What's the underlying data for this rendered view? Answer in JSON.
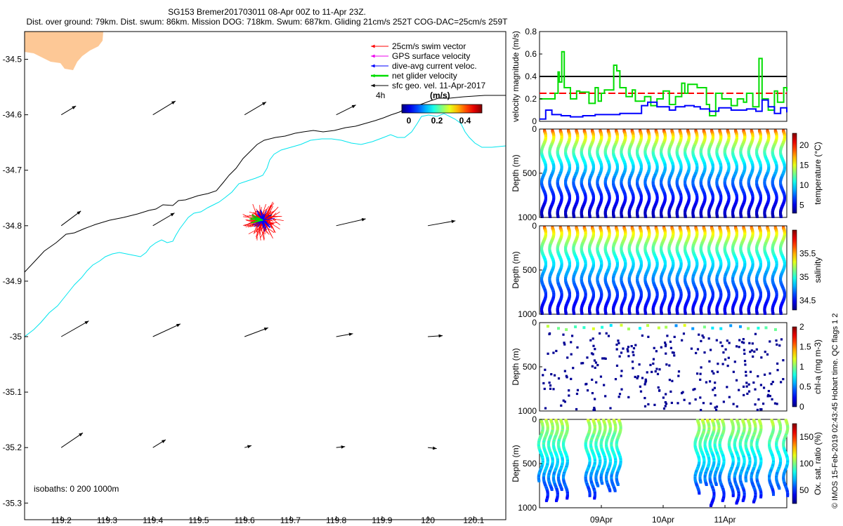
{
  "header": {
    "title": "SG153 Bremer201703011 08-Apr 00Z to 11-Apr 23Z.",
    "subtitle": "Dist. over ground: 79km. Dist. swum: 86km. Mission DOG: 718km. Swum: 687km. Gliding 21cm/s 252T COG-DAC=25cm/s 259T"
  },
  "colors": {
    "land": "#fdc896",
    "coast_200": "#000000",
    "coast_1000": "#00e5ee",
    "swim": "#ff0000",
    "gps": "#ee00ee",
    "dac": "#0000ff",
    "net": "#00dd00",
    "geo": "#000000"
  },
  "chart_data": [
    {
      "type": "scatter",
      "name": "map",
      "xlim": [
        119.12,
        120.17
      ],
      "ylim": [
        -35.33,
        -34.45
      ],
      "xticks": [
        "119.2",
        "119.3",
        "119.4",
        "119.5",
        "119.6",
        "119.7",
        "119.8",
        "119.9",
        "120",
        "120.1"
      ],
      "yticks": [
        "-34.5",
        "-34.6",
        "-34.7",
        "-34.8",
        "-34.9",
        "-35",
        "-35.1",
        "-35.2",
        "-35.3"
      ],
      "legend": [
        {
          "label": "25cm/s swim vector",
          "color": "#ff0000"
        },
        {
          "label": "GPS surface velocity",
          "color": "#ee00ee"
        },
        {
          "label": "dive-avg current veloc.",
          "color": "#0000ff"
        },
        {
          "label": "net glider velocity",
          "color": "#00dd00"
        },
        {
          "label": "sfc geo. vel. 11-Apr-2017",
          "color": "#000000"
        }
      ],
      "time_step_label": "4h",
      "colorbar": {
        "title": "(m/s)",
        "ticks": [
          "0",
          "0.2",
          "0.4"
        ]
      },
      "isobaths_label": "isobaths: 0   200  1000m",
      "glider_position": [
        119.64,
        -34.79
      ],
      "geo_vectors": [
        {
          "lon": 119.2,
          "lat": -34.6,
          "u": 0.15,
          "v": 0.09
        },
        {
          "lon": 119.4,
          "lat": -34.6,
          "u": 0.23,
          "v": 0.14
        },
        {
          "lon": 119.6,
          "lat": -34.6,
          "u": 0.22,
          "v": 0.13
        },
        {
          "lon": 119.8,
          "lat": -34.6,
          "u": 0.2,
          "v": 0.1
        },
        {
          "lon": 119.2,
          "lat": -34.8,
          "u": 0.2,
          "v": 0.15
        },
        {
          "lon": 119.4,
          "lat": -34.8,
          "u": 0.22,
          "v": 0.13
        },
        {
          "lon": 119.6,
          "lat": -34.8,
          "u": 0.28,
          "v": 0.11
        },
        {
          "lon": 119.8,
          "lat": -34.8,
          "u": 0.3,
          "v": 0.07
        },
        {
          "lon": 120.0,
          "lat": -34.8,
          "u": 0.28,
          "v": 0.05
        },
        {
          "lon": 119.2,
          "lat": -35.0,
          "u": 0.28,
          "v": 0.16
        },
        {
          "lon": 119.4,
          "lat": -35.0,
          "u": 0.28,
          "v": 0.13
        },
        {
          "lon": 119.6,
          "lat": -35.0,
          "u": 0.24,
          "v": 0.09
        },
        {
          "lon": 119.8,
          "lat": -35.0,
          "u": 0.17,
          "v": 0.03
        },
        {
          "lon": 120.0,
          "lat": -35.0,
          "u": 0.15,
          "v": 0.01
        },
        {
          "lon": 119.2,
          "lat": -35.2,
          "u": 0.22,
          "v": 0.15
        },
        {
          "lon": 119.4,
          "lat": -35.2,
          "u": 0.13,
          "v": 0.08
        },
        {
          "lon": 119.6,
          "lat": -35.2,
          "u": 0.07,
          "v": 0.02
        },
        {
          "lon": 119.8,
          "lat": -35.2,
          "u": 0.09,
          "v": 0.01
        },
        {
          "lon": 120.0,
          "lat": -35.2,
          "u": 0.09,
          "v": -0.01
        }
      ]
    },
    {
      "type": "line",
      "name": "velocity",
      "ylabel": "velocity magnitude (m/s)",
      "ylim": [
        0,
        0.8
      ],
      "yticks": [
        "0",
        "0.2",
        "0.4",
        "0.6",
        "0.8"
      ],
      "xlim": [
        8.0,
        12.0
      ],
      "reference_lines": [
        {
          "value": 0.4,
          "color": "#000000"
        },
        {
          "value": 0.25,
          "color": "#ff0000",
          "dashed": true
        }
      ],
      "series": [
        {
          "name": "net glider velocity",
          "color": "#00dd00",
          "x": [
            8.0,
            8.1,
            8.15,
            8.25,
            8.3,
            8.32,
            8.36,
            8.4,
            8.5,
            8.6,
            8.65,
            8.8,
            8.9,
            8.95,
            9.0,
            9.05,
            9.2,
            9.25,
            9.3,
            9.4,
            9.5,
            9.55,
            9.7,
            9.8,
            9.9,
            10.0,
            10.1,
            10.2,
            10.3,
            10.35,
            10.4,
            10.55,
            10.7,
            10.75,
            10.85,
            10.95,
            11.1,
            11.2,
            11.3,
            11.35,
            11.45,
            11.55,
            11.6,
            11.7,
            11.8,
            11.85,
            11.95,
            12.0
          ],
          "y": [
            0.2,
            0.2,
            0.2,
            0.25,
            0.44,
            0.35,
            0.62,
            0.3,
            0.2,
            0.27,
            0.26,
            0.16,
            0.3,
            0.18,
            0.25,
            0.28,
            0.5,
            0.45,
            0.3,
            0.22,
            0.28,
            0.18,
            0.22,
            0.14,
            0.2,
            0.27,
            0.15,
            0.22,
            0.34,
            0.25,
            0.33,
            0.3,
            0.15,
            0.05,
            0.25,
            0.2,
            0.14,
            0.2,
            0.17,
            0.25,
            0.13,
            0.56,
            0.2,
            0.1,
            0.27,
            0.17,
            0.3,
            0.27
          ]
        },
        {
          "name": "dive-avg current veloc.",
          "color": "#0000ff",
          "x": [
            8.0,
            8.1,
            8.2,
            8.35,
            8.5,
            8.7,
            8.9,
            9.1,
            9.3,
            9.5,
            9.65,
            9.75,
            9.9,
            10.1,
            10.2,
            10.35,
            10.5,
            10.6,
            10.75,
            10.9,
            11.1,
            11.25,
            11.35,
            11.5,
            11.6,
            11.7,
            11.8,
            11.9,
            12.0
          ],
          "y": [
            0.02,
            0.1,
            0.06,
            0.05,
            0.04,
            0.05,
            0.06,
            0.06,
            0.07,
            0.07,
            0.14,
            0.17,
            0.13,
            0.1,
            0.13,
            0.14,
            0.13,
            0.11,
            0.09,
            0.12,
            0.1,
            0.1,
            0.11,
            0.09,
            0.19,
            0.13,
            0.07,
            0.12,
            0.08
          ]
        }
      ]
    },
    {
      "type": "scatter",
      "name": "temperature",
      "ylabel": "Depth (m)",
      "colorbar_label": "temperature (°C)",
      "yticks": [
        "0",
        "500",
        "1000"
      ],
      "colorbar_ticks": [
        "5",
        "10",
        "15",
        "20"
      ],
      "clim": [
        3,
        23
      ],
      "profiles": 31,
      "surface_value": 22,
      "deep_value": 4,
      "max_depth": 1000
    },
    {
      "type": "scatter",
      "name": "salinity",
      "ylabel": "Depth (m)",
      "colorbar_label": "salinity",
      "yticks": [
        "0",
        "500",
        "1000"
      ],
      "colorbar_ticks": [
        "34.5",
        "35",
        "35.5"
      ],
      "clim": [
        34.3,
        36.0
      ],
      "profiles": 31,
      "surface_value": 35.85,
      "deep_value": 34.45,
      "max_depth": 1000
    },
    {
      "type": "scatter",
      "name": "chlorophyll",
      "ylabel": "Depth (m)",
      "colorbar_label": "chl-a (mg m-3)",
      "yticks": [
        "0",
        "500",
        "1000"
      ],
      "colorbar_ticks": [
        "0",
        "0.5",
        "1",
        "1.5",
        "2"
      ],
      "clim": [
        0,
        2
      ],
      "note": "sparse samples; surface 0.5-1.2, deep ~0"
    },
    {
      "type": "scatter",
      "name": "oxygen",
      "ylabel": "Depth (m)",
      "colorbar_label": "Ox. sat. ratio (%)",
      "yticks": [
        "0",
        "500",
        "1000"
      ],
      "colorbar_ticks": [
        "50",
        "100",
        "150"
      ],
      "clim": [
        25,
        175
      ],
      "xticks": [
        "09Apr",
        "10Apr",
        "11Apr"
      ],
      "present_intervals": [
        [
          8.02,
          8.42
        ],
        [
          8.78,
          9.28
        ],
        [
          10.55,
          10.95
        ],
        [
          11.1,
          11.55
        ],
        [
          11.75,
          11.98
        ]
      ]
    }
  ],
  "side_text": "© IMOS 15-Feb-2019 02:43:45 Hobart time. QC flags 1  2"
}
